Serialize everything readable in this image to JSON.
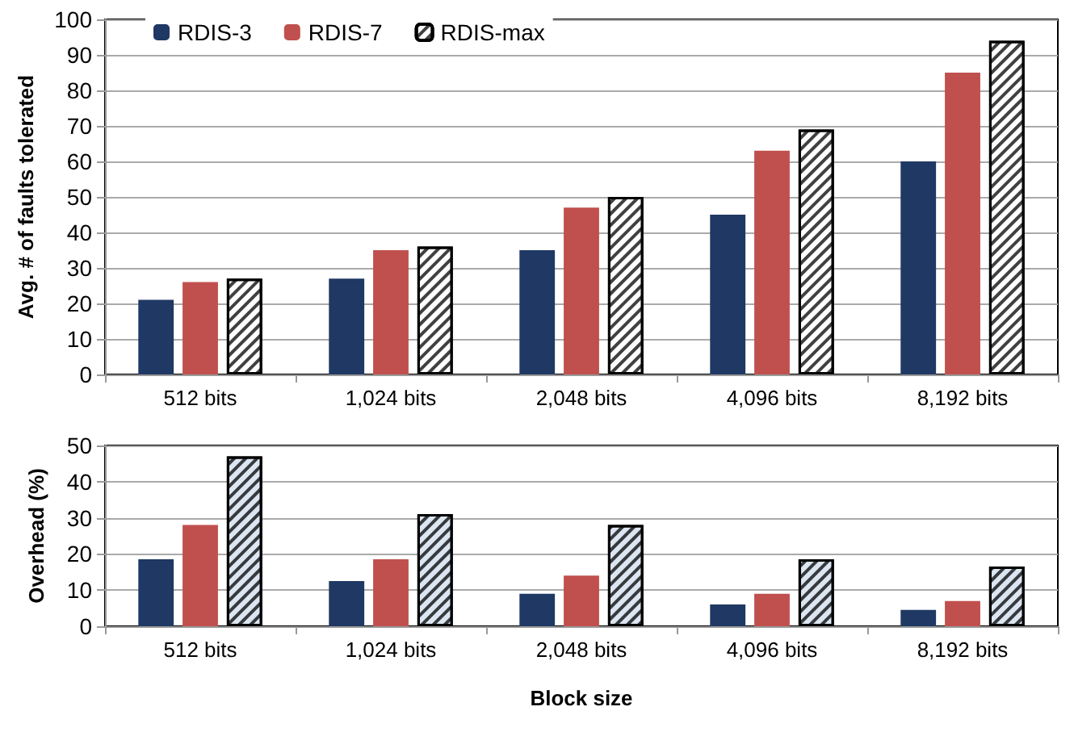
{
  "chart_data": [
    {
      "type": "bar",
      "ylabel": "Avg. # of faults tolerated",
      "categories": [
        "512 bits",
        "1,024 bits",
        "2,048 bits",
        "4,096 bits",
        "8,192 bits"
      ],
      "series": [
        {
          "name": "RDIS-3",
          "color": "#1f3864",
          "values": [
            21,
            27,
            35,
            45,
            60
          ]
        },
        {
          "name": "RDIS-7",
          "color": "#c0504d",
          "values": [
            26,
            35,
            47,
            63,
            85
          ]
        },
        {
          "name": "RDIS-max",
          "color": "#ffffff",
          "values": [
            27,
            36,
            50,
            69,
            94
          ]
        }
      ],
      "ylim": [
        0,
        100
      ],
      "yticks": [
        0,
        10,
        20,
        30,
        40,
        50,
        60,
        70,
        80,
        90,
        100
      ],
      "grid": "y",
      "legend": "top left"
    },
    {
      "type": "bar",
      "ylabel": "Overhead (%)",
      "xlabel": "Block size",
      "categories": [
        "512 bits",
        "1,024 bits",
        "2,048 bits",
        "4,096 bits",
        "8,192 bits"
      ],
      "series": [
        {
          "color": "#1f3864",
          "values": [
            18.5,
            12.5,
            9,
            6,
            4.5
          ]
        },
        {
          "color": "#c0504d",
          "values": [
            28,
            18.5,
            14,
            9,
            7
          ]
        },
        {
          "color": "#dce6f2",
          "values": [
            47,
            31,
            28,
            18.5,
            16.5
          ]
        }
      ],
      "ylim": [
        0,
        50
      ],
      "yticks": [
        0,
        10,
        20,
        30,
        40,
        50
      ],
      "grid": "y"
    }
  ]
}
